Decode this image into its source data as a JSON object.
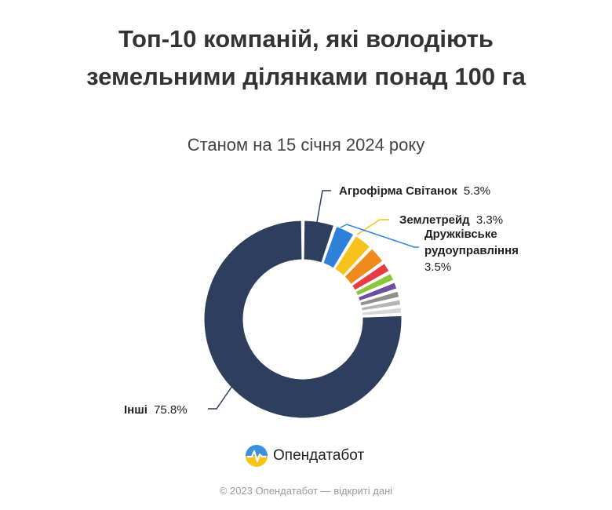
{
  "header": {
    "title": "Топ-10 компаній, які володіють земельними ділянками понад 100 га",
    "subtitle": "Станом на 15 січня 2024 року"
  },
  "chart_data": {
    "type": "pie",
    "donut": true,
    "title": "Топ-10 компаній, які володіють земельними ділянками понад 100 га",
    "subtitle": "Станом на 15 січня 2024 року",
    "series": [
      {
        "name": "Агрофірма Світанок",
        "value": 5.3,
        "color": "#2d3e5e",
        "label": true
      },
      {
        "name": "Дружківське рудоуправління",
        "value": 3.5,
        "color": "#2f80d8",
        "label": true
      },
      {
        "name": "Землетрейд",
        "value": 3.3,
        "color": "#f7c21b",
        "label": true
      },
      {
        "name": "",
        "value": 3.1,
        "color": "#f08a1c",
        "label": false
      },
      {
        "name": "",
        "value": 1.9,
        "color": "#e83b43",
        "label": false
      },
      {
        "name": "",
        "value": 1.6,
        "color": "#8cc63e",
        "label": false
      },
      {
        "name": "",
        "value": 1.5,
        "color": "#6e4e9e",
        "label": false
      },
      {
        "name": "",
        "value": 1.4,
        "color": "#8f8f8f",
        "label": false
      },
      {
        "name": "",
        "value": 1.3,
        "color": "#b4b4b4",
        "label": false
      },
      {
        "name": "",
        "value": 1.3,
        "color": "#d6d6d6",
        "label": false
      },
      {
        "name": "Інші",
        "value": 75.8,
        "color": "#2d3e5e",
        "label": true
      }
    ],
    "labels": [
      {
        "name": "Агрофірма Світанок",
        "value_text": "5.3%",
        "line_color": "#2d3e5e"
      },
      {
        "name": "Землетрейд",
        "value_text": "3.3%",
        "line_color": "#f7c21b"
      },
      {
        "name": "Дружківське",
        "name2": "рудоуправління",
        "value_text": "3.5%",
        "line_color": "#2f80d8"
      },
      {
        "name": "Інші",
        "value_text": "75.8%",
        "line_color": "#2d3e5e"
      }
    ]
  },
  "brand": {
    "name": "Опендатабот",
    "logo_icon": "opendatabot-logo-icon"
  },
  "footer": {
    "text": "© 2023 Опендатабот — відкриті дані"
  }
}
